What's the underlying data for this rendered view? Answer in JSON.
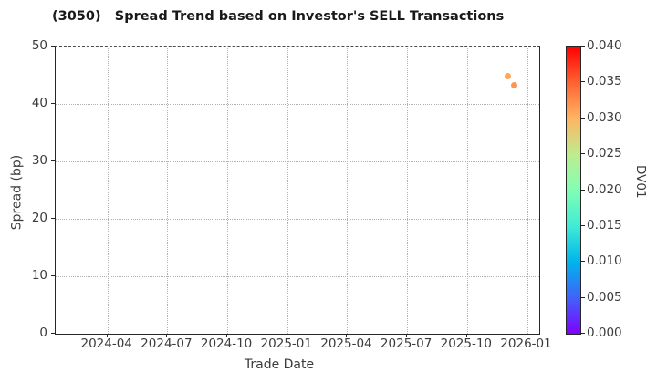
{
  "chart_data": {
    "type": "scatter",
    "title": "(3050)   Spread Trend based on Investor's SELL Transactions",
    "xlabel": "Trade Date",
    "ylabel": "Spread (bp)",
    "ylim": [
      0,
      50
    ],
    "y_ticks": [
      0,
      10,
      20,
      30,
      40,
      50
    ],
    "x_ticks": [
      "2024-04",
      "2024-07",
      "2024-10",
      "2025-01",
      "2025-04",
      "2025-07",
      "2025-10",
      "2026-01"
    ],
    "grid": "dotted",
    "legend": "none",
    "points": [
      {
        "date": "2025-12-02",
        "spread": 44.8,
        "dv01": 0.031
      },
      {
        "date": "2025-12-12",
        "spread": 43.3,
        "dv01": 0.032
      }
    ],
    "colorbar": {
      "label": "DV01",
      "min": 0.0,
      "max": 0.04,
      "tick_labels": [
        "0.000",
        "0.005",
        "0.010",
        "0.015",
        "0.020",
        "0.025",
        "0.030",
        "0.035",
        "0.040"
      ],
      "colormap": "rainbow"
    }
  }
}
